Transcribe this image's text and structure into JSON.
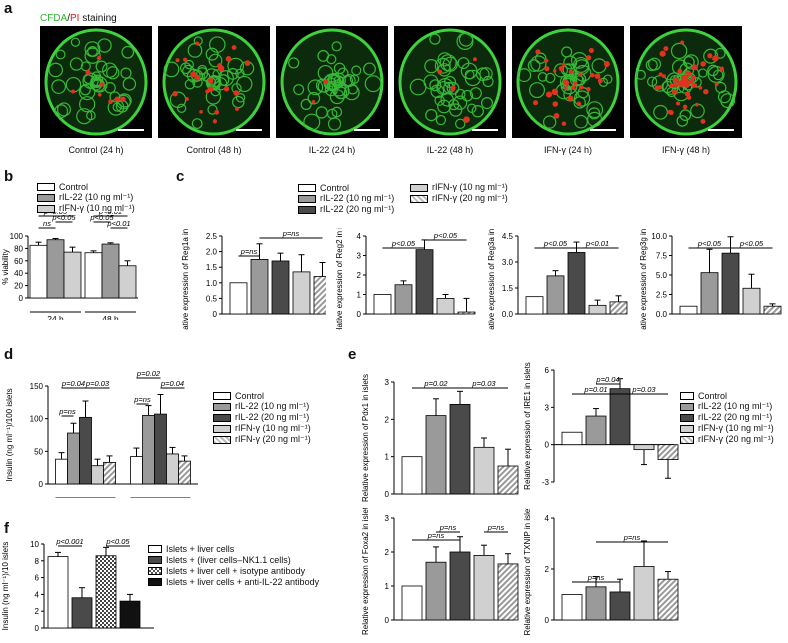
{
  "panel_labels": {
    "a": "a",
    "b": "b",
    "c": "c",
    "d": "d",
    "e": "e",
    "f": "f"
  },
  "staining": {
    "cfda": "CFDA",
    "sep": "/",
    "pi": "PI",
    "rest": " staining"
  },
  "micrographs": [
    {
      "label": "Control (24 h)",
      "red": 8
    },
    {
      "label": "Control (48 h)",
      "red": 22
    },
    {
      "label": "IL-22 (24 h)",
      "red": 2
    },
    {
      "label": "IL-22 (48 h)",
      "red": 5
    },
    {
      "label": "IFN-γ (24 h)",
      "red": 30
    },
    {
      "label": "IFN-γ (48 h)",
      "red": 45
    }
  ],
  "colors": {
    "white": "#ffffff",
    "gray": "#9a9a9a",
    "dark": "#4a4a4a",
    "light": "#d0d0d0",
    "black": "#111111"
  },
  "legend_b": [
    "Control",
    "rIL-22 (10 ng ml⁻¹)",
    "rIFN-γ (10 ng ml⁻¹)"
  ],
  "legend_c": [
    "Control",
    "rIL-22 (10 ng ml⁻¹)",
    "rIL-22 (20 ng ml⁻¹)",
    "rIFN-γ (10 ng ml⁻¹)",
    "rIFN-γ (20 ng ml⁻¹)"
  ],
  "legend_f": [
    "Islets + liver cells",
    "Islets + (liver cells–NK1.1 cells)",
    "Islets + liver cell + isotype antibody",
    "Islets + liver cells + anti-IL-22 antibody"
  ],
  "chart_data": [
    {
      "id": "b",
      "type": "bar",
      "ylabel": "% viability",
      "ylim": [
        0,
        100
      ],
      "yticks": [
        "0",
        "20",
        "40",
        "60",
        "80",
        "100"
      ],
      "groups": [
        "24 h",
        "48 h"
      ],
      "series": [
        {
          "name": "Control",
          "values": [
            85,
            73
          ],
          "err": [
            5,
            3
          ]
        },
        {
          "name": "rIL-22 (10 ng ml⁻¹)",
          "values": [
            94,
            87
          ],
          "err": [
            2,
            2
          ]
        },
        {
          "name": "rIFN-γ (10 ng ml⁻¹)",
          "values": [
            74,
            52
          ],
          "err": [
            8,
            8
          ]
        }
      ],
      "annotations": [
        "ns",
        "p<0.05",
        "p<0.05",
        "p<0.05",
        "p<0.01",
        "p<0.01"
      ]
    },
    {
      "id": "c1",
      "type": "bar",
      "ylabel": "Relative expression of Reg1a in islets",
      "ylim": [
        0,
        2.5
      ],
      "yticks": [
        "0",
        "0.5",
        "1.0",
        "1.5",
        "2.0",
        "2.5"
      ],
      "values": [
        1.0,
        1.75,
        1.7,
        1.35,
        1.2
      ],
      "err": [
        0,
        0.5,
        0.25,
        0.55,
        0.45
      ],
      "annotations": [
        "p=ns",
        "p=ns"
      ]
    },
    {
      "id": "c2",
      "type": "bar",
      "ylabel": "Relative expression of Reg2 in islets",
      "ylim": [
        0,
        4
      ],
      "yticks": [
        "0",
        "1",
        "2",
        "3",
        "4"
      ],
      "values": [
        1.0,
        1.5,
        3.3,
        0.8,
        0.1
      ],
      "err": [
        0,
        0.2,
        0.5,
        0.2,
        0.7
      ],
      "annotations": [
        "p<0.05",
        "p<0.05"
      ]
    },
    {
      "id": "c3",
      "type": "bar",
      "ylabel": "Relative expression of Reg3a in islets",
      "ylim": [
        0,
        4.5
      ],
      "yticks": [
        "0.0",
        "1.5",
        "3.0",
        "4.5"
      ],
      "values": [
        1.0,
        2.2,
        3.55,
        0.5,
        0.7
      ],
      "err": [
        0,
        0.3,
        0.6,
        0.3,
        0.35
      ],
      "annotations": [
        "p<0.05",
        "p<0.01"
      ]
    },
    {
      "id": "c4",
      "type": "bar",
      "ylabel": "Relative expression of Reg3g in islets",
      "ylim": [
        0,
        10
      ],
      "yticks": [
        "0.0",
        "2.5",
        "5.0",
        "7.5",
        "10.0"
      ],
      "values": [
        1.0,
        5.3,
        7.8,
        3.3,
        1.0
      ],
      "err": [
        0,
        3.0,
        2.1,
        1.8,
        0.3
      ],
      "annotations": [
        "p<0.05",
        "p<0.05"
      ]
    },
    {
      "id": "d",
      "type": "bar",
      "ylabel": "Insulin (ng ml⁻¹)/100 islets",
      "ylim": [
        0,
        150
      ],
      "yticks": [
        "0",
        "50",
        "100",
        "150"
      ],
      "groups": [
        "24 h",
        "48 h"
      ],
      "series": [
        {
          "name": "Control",
          "values": [
            38,
            42
          ],
          "err": [
            10,
            13
          ]
        },
        {
          "name": "rIL-22 (10 ng ml⁻¹)",
          "values": [
            78,
            105
          ],
          "err": [
            15,
            15
          ]
        },
        {
          "name": "rIL-22 (20 ng ml⁻¹)",
          "values": [
            102,
            107
          ],
          "err": [
            25,
            30
          ]
        },
        {
          "name": "rIFN-γ (10 ng ml⁻¹)",
          "values": [
            28,
            46
          ],
          "err": [
            10,
            10
          ]
        },
        {
          "name": "rIFN-γ (20 ng ml⁻¹)",
          "values": [
            33,
            35
          ],
          "err": [
            10,
            8
          ]
        }
      ],
      "annotations": [
        "p=ns",
        "p=0.04",
        "p=0.03",
        "p=ns",
        "p=0.02",
        "p=0.04"
      ]
    },
    {
      "id": "e1",
      "type": "bar",
      "ylabel": "Relative expression of Pdx1 in islets",
      "ylim": [
        0,
        3
      ],
      "yticks": [
        "0",
        "1",
        "2",
        "3"
      ],
      "values": [
        1.0,
        2.1,
        2.4,
        1.25,
        0.75
      ],
      "err": [
        0,
        0.45,
        0.35,
        0.25,
        0.45
      ],
      "annotations": [
        "p=0.02",
        "p=0.03"
      ]
    },
    {
      "id": "e2",
      "type": "bar",
      "ylabel": "Relative expression of IRE1 in islets",
      "ylim": [
        -3,
        6
      ],
      "yticks": [
        "-3",
        "0",
        "3",
        "6"
      ],
      "values": [
        1.0,
        2.3,
        4.5,
        -0.4,
        -1.2
      ],
      "err": [
        0,
        0.6,
        0.8,
        1.2,
        1.5
      ],
      "annotations": [
        "p=0.01",
        "p=0.04",
        "p=0.03"
      ]
    },
    {
      "id": "e3",
      "type": "bar",
      "ylabel": "Relative expression of Foxa2 in islets",
      "ylim": [
        0,
        3
      ],
      "yticks": [
        "0",
        "1",
        "2",
        "3"
      ],
      "values": [
        1.0,
        1.7,
        2.0,
        1.9,
        1.65
      ],
      "err": [
        0,
        0.45,
        0.45,
        0.3,
        0.3
      ],
      "annotations": [
        "p=ns",
        "p=ns",
        "p=ns"
      ]
    },
    {
      "id": "e4",
      "type": "bar",
      "ylabel": "Relative expression of TXNIP in islets",
      "ylim": [
        0,
        4
      ],
      "yticks": [
        "0",
        "2",
        "4"
      ],
      "values": [
        1.0,
        1.3,
        1.1,
        2.1,
        1.6
      ],
      "err": [
        0,
        0.4,
        0.5,
        1.0,
        0.3
      ],
      "annotations": [
        "p=ns",
        "p=ns"
      ]
    },
    {
      "id": "f",
      "type": "bar",
      "ylabel": "Insulin (ng ml⁻¹)/10 islets",
      "ylim": [
        0,
        10
      ],
      "yticks": [
        "0",
        "2",
        "4",
        "6",
        "8",
        "10"
      ],
      "values": [
        8.5,
        3.6,
        8.6,
        3.2
      ],
      "err": [
        0.5,
        1.2,
        1.0,
        0.8
      ],
      "annotations": [
        "p<0.001",
        "p<0.05"
      ]
    }
  ]
}
